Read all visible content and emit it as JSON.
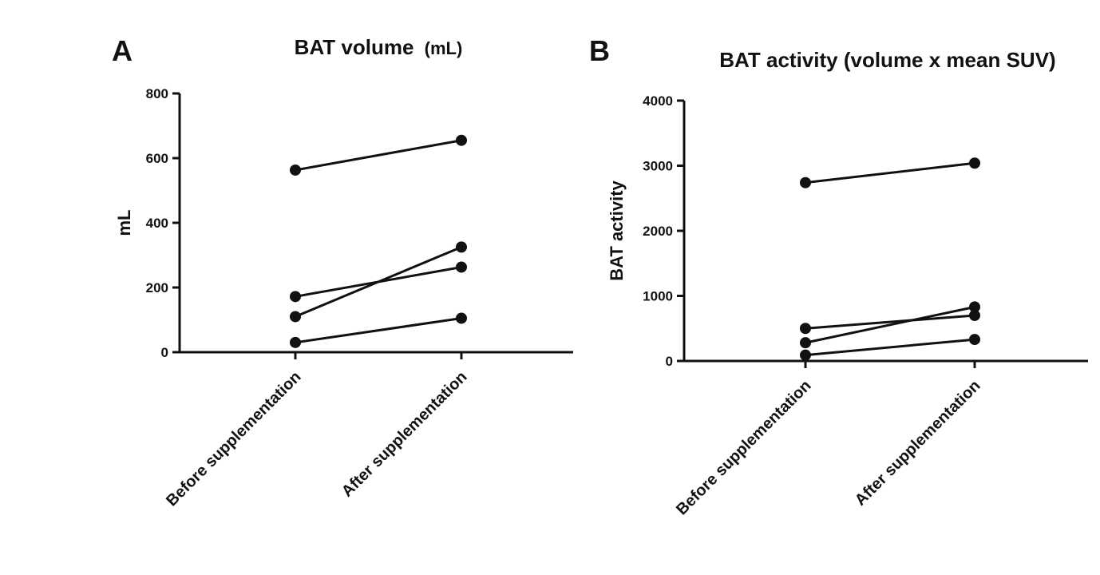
{
  "chart_data": [
    {
      "panel": "A",
      "type": "line",
      "title": "BAT volume",
      "title_unit": "(mL)",
      "xlabel": "",
      "ylabel": "mL",
      "categories": [
        "Before supplementation",
        "After supplementation"
      ],
      "ylim": [
        0,
        800
      ],
      "yticks": [
        0,
        200,
        400,
        600,
        800
      ],
      "grid": false,
      "legend": "none",
      "series": [
        {
          "values": [
            563,
            655
          ]
        },
        {
          "values": [
            172,
            263
          ]
        },
        {
          "values": [
            110,
            325
          ]
        },
        {
          "values": [
            30,
            105
          ]
        }
      ]
    },
    {
      "panel": "B",
      "type": "line",
      "title": "BAT activity (volume x mean SUV)",
      "xlabel": "",
      "ylabel": "BAT activity",
      "categories": [
        "Before supplementation",
        "After supplementation"
      ],
      "ylim": [
        0,
        4000
      ],
      "yticks": [
        0,
        1000,
        2000,
        3000,
        4000
      ],
      "grid": false,
      "legend": "none",
      "series": [
        {
          "values": [
            2740,
            3040
          ]
        },
        {
          "values": [
            500,
            700
          ]
        },
        {
          "values": [
            280,
            830
          ]
        },
        {
          "values": [
            90,
            330
          ]
        }
      ]
    }
  ]
}
